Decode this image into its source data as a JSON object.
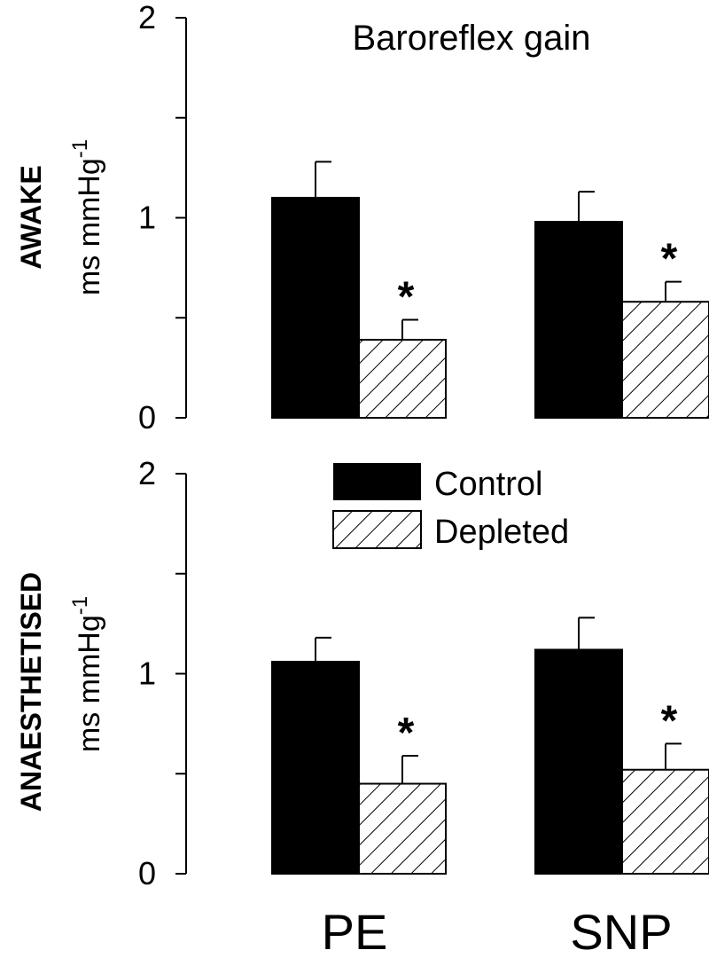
{
  "chart_data": {
    "type": "bar",
    "title": "Baroreflex gain",
    "categories": [
      "PE",
      "SNP"
    ],
    "ylabel": "ms mmHg",
    "ylabel_superscript": "-1",
    "ylim": [
      0,
      2
    ],
    "yticks": [
      "0",
      "1",
      "2"
    ],
    "legend": {
      "placement": "top-center of lower panel",
      "entries": [
        {
          "name": "Control",
          "fill": "solid",
          "color": "#000000"
        },
        {
          "name": "Depleted",
          "fill": "hatched",
          "color": "#000000"
        }
      ]
    },
    "significance_marker": "*",
    "panels": [
      {
        "label": "AWAKE",
        "series": [
          {
            "name": "Control",
            "values": [
              1.1,
              0.98
            ],
            "errors": [
              0.18,
              0.15
            ]
          },
          {
            "name": "Depleted",
            "values": [
              0.39,
              0.58
            ],
            "errors": [
              0.1,
              0.1
            ]
          }
        ],
        "significant": [
          false,
          true
        ]
      },
      {
        "label": "ANAESTHETISED",
        "series": [
          {
            "name": "Control",
            "values": [
              1.06,
              1.12
            ],
            "errors": [
              0.12,
              0.16
            ]
          },
          {
            "name": "Depleted",
            "values": [
              0.45,
              0.52
            ],
            "errors": [
              0.14,
              0.13
            ]
          }
        ],
        "significant": [
          false,
          true
        ]
      }
    ]
  }
}
